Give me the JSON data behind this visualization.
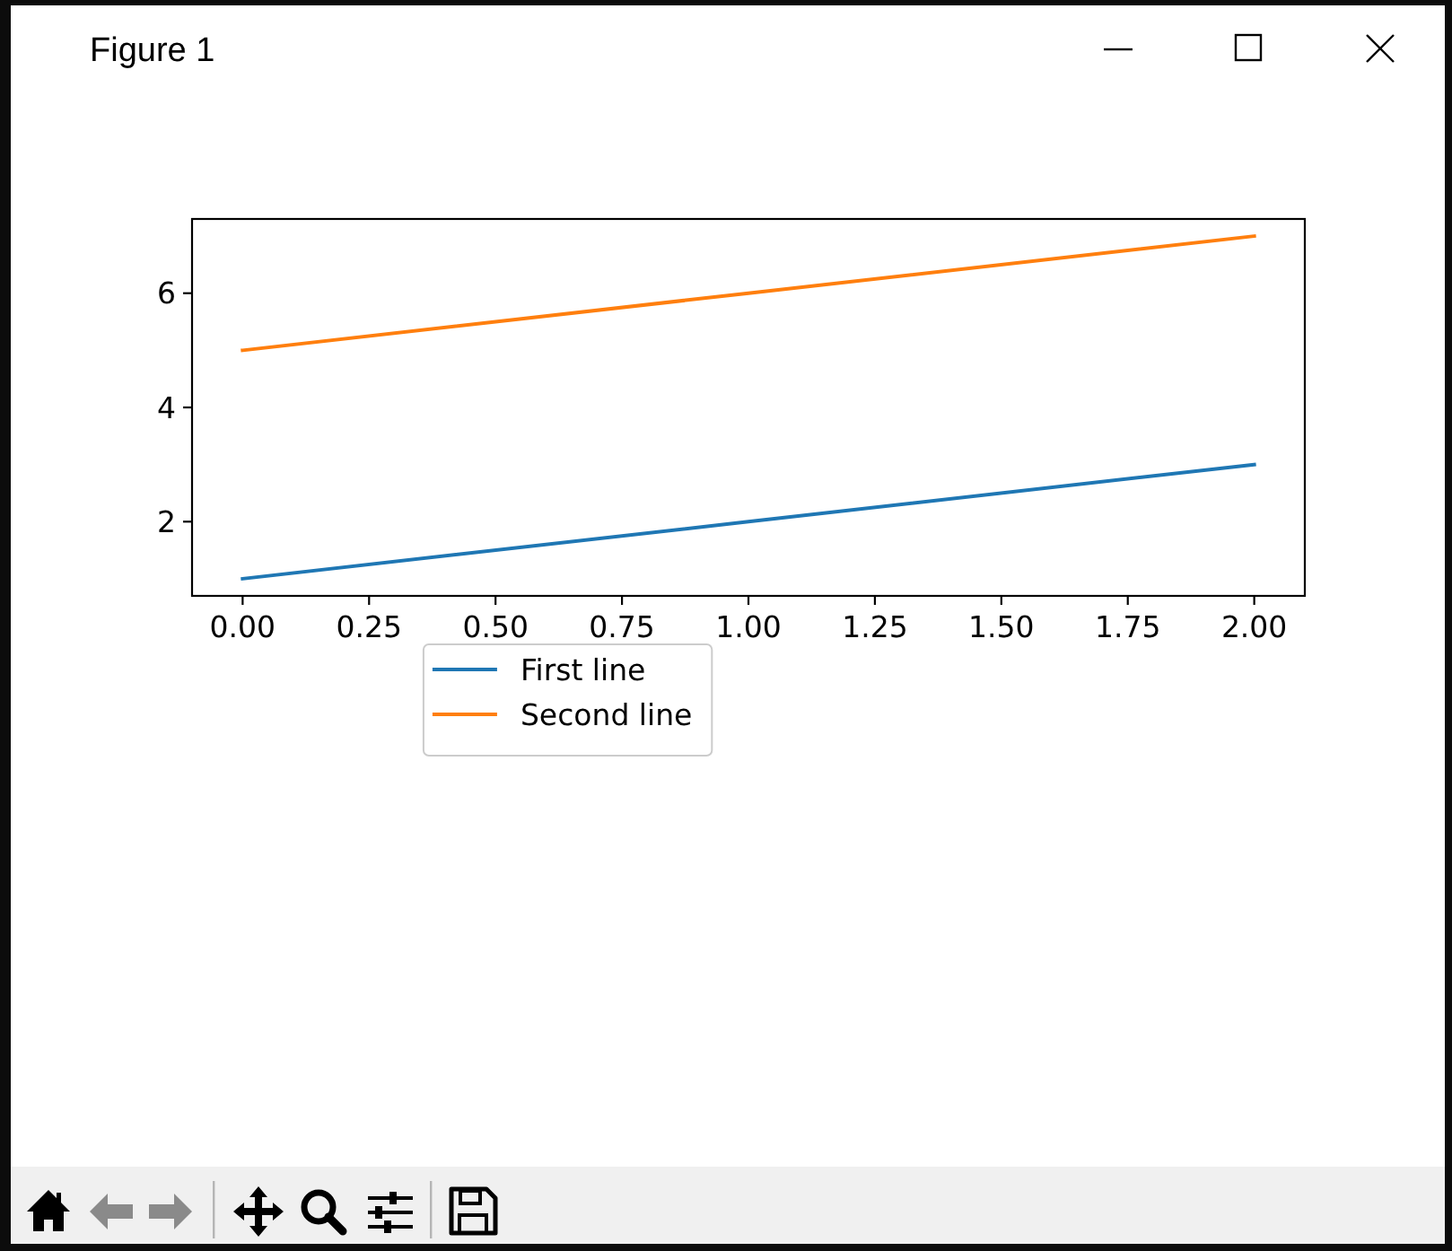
{
  "chart_data": {
    "type": "line",
    "title": "Figure 1",
    "x": [
      0,
      1,
      2
    ],
    "series": [
      {
        "name": "First line",
        "color": "#1f77b4",
        "values": [
          1,
          2,
          3
        ]
      },
      {
        "name": "Second line",
        "color": "#ff7f0e",
        "values": [
          5,
          6,
          7
        ]
      }
    ],
    "xlim": [
      -0.1,
      2.1
    ],
    "ylim": [
      0.7,
      7.3
    ],
    "xticks": [
      {
        "value": 0,
        "label": "0.00"
      },
      {
        "value": 0.25,
        "label": "0.25"
      },
      {
        "value": 0.5,
        "label": "0.50"
      },
      {
        "value": 0.75,
        "label": "0.75"
      },
      {
        "value": 1,
        "label": "1.00"
      },
      {
        "value": 1.25,
        "label": "1.25"
      },
      {
        "value": 1.5,
        "label": "1.50"
      },
      {
        "value": 1.75,
        "label": "1.75"
      },
      {
        "value": 2,
        "label": "2.00"
      }
    ],
    "yticks": [
      2,
      4,
      6
    ],
    "legend": "bottom",
    "line_style": "solid"
  }
}
